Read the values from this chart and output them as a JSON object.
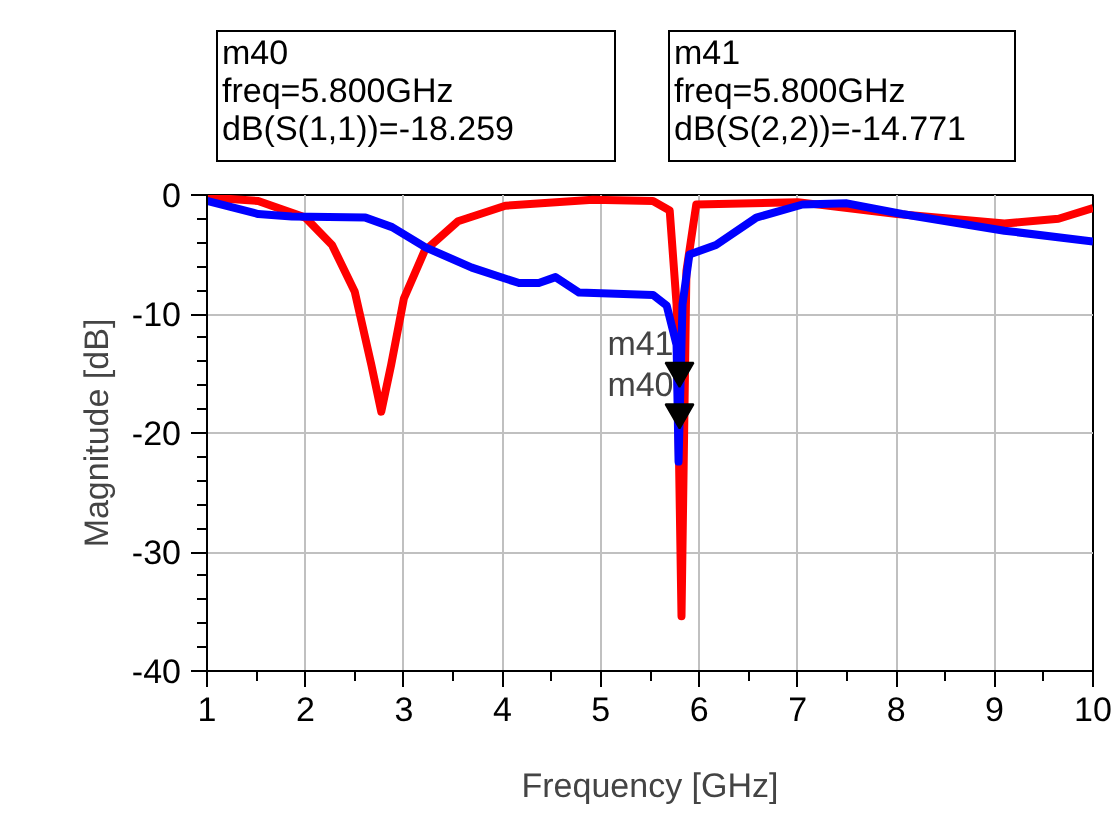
{
  "chart_data": {
    "type": "line",
    "xlabel": "Frequency [GHz]",
    "ylabel": "Magnitude [dB]",
    "xlim": [
      1,
      10
    ],
    "ylim": [
      -40,
      0
    ],
    "xticks": [
      1,
      2,
      3,
      4,
      5,
      6,
      7,
      8,
      9,
      10
    ],
    "yticks": [
      -40,
      -30,
      -20,
      -10,
      0
    ],
    "grid": true,
    "line_style": "solid",
    "marker": "none",
    "series": [
      {
        "color": "#ff0000",
        "x": [
          1.0,
          1.52,
          2.0,
          2.27,
          2.5,
          2.67,
          2.77,
          2.87,
          3.0,
          3.21,
          3.55,
          4.03,
          4.92,
          5.53,
          5.7,
          5.77,
          5.82,
          5.87,
          5.97,
          7.0,
          8.01,
          9.1,
          9.65,
          10.0
        ],
        "values": [
          -0.2,
          -0.5,
          -1.9,
          -4.2,
          -8.1,
          -14.3,
          -18.2,
          -14.3,
          -8.7,
          -4.7,
          -2.2,
          -0.9,
          -0.4,
          -0.5,
          -1.3,
          -9.2,
          -35.4,
          -6.4,
          -0.8,
          -0.6,
          -1.6,
          -2.4,
          -2.0,
          -1.1
        ]
      },
      {
        "color": "#0000ff",
        "x": [
          1.0,
          1.52,
          1.86,
          2.61,
          2.88,
          3.22,
          3.69,
          4.17,
          4.37,
          4.54,
          4.78,
          5.53,
          5.67,
          5.77,
          5.79,
          5.83,
          5.9,
          6.17,
          6.58,
          7.05,
          7.5,
          8.06,
          9.1,
          10.0
        ],
        "values": [
          -0.5,
          -1.6,
          -1.8,
          -1.9,
          -2.7,
          -4.4,
          -6.1,
          -7.4,
          -7.4,
          -6.9,
          -8.2,
          -8.4,
          -9.3,
          -12.6,
          -22.4,
          -9.2,
          -5.0,
          -4.2,
          -1.9,
          -0.8,
          -0.7,
          -1.6,
          -3.0,
          -3.9
        ]
      }
    ],
    "annotations": [
      "m40\nfreq=5.800GHz\ndB(S(1,1))=-18.259",
      "m41\nfreq=5.800GHz\ndB(S(2,2))=-14.771",
      {
        "text": "m41",
        "x": 5.8,
        "y": -14.771
      },
      {
        "text": "m40",
        "x": 5.8,
        "y": -18.259
      }
    ]
  }
}
